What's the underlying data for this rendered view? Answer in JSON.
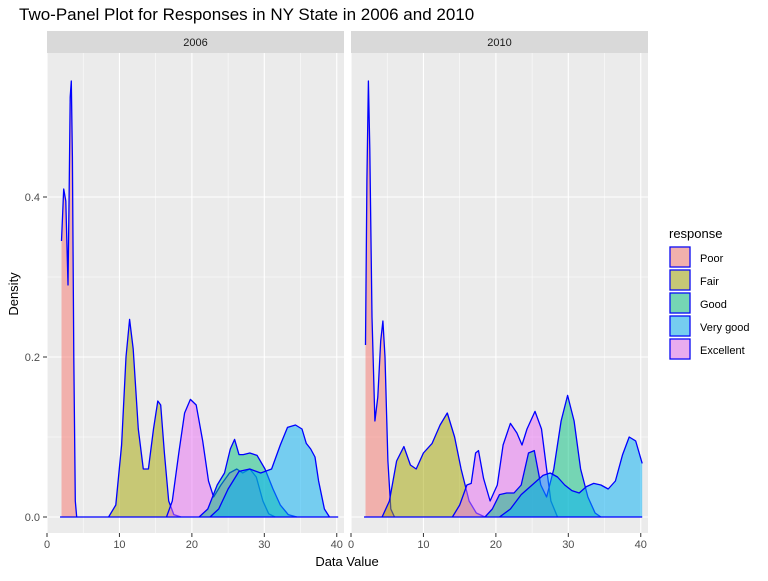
{
  "chart_data": {
    "type": "area",
    "title": "Two-Panel Plot for Responses in NY State in 2006 and 2010",
    "xlabel": "Data Value",
    "ylabel": "Density",
    "xlim": [
      0,
      41
    ],
    "ylim": [
      -0.02,
      0.58
    ],
    "x_ticks": [
      0,
      10,
      20,
      30,
      40
    ],
    "y_ticks": [
      0.0,
      0.2,
      0.4
    ],
    "y_tick_labels": [
      "0.0",
      "0.2",
      "0.4"
    ],
    "grid": true,
    "legend": {
      "title": "response",
      "position": "right"
    },
    "colors": {
      "Poor": "#F8766D",
      "Fair": "#A3A500",
      "Good": "#00BF7D",
      "Very good": "#00B0F6",
      "Excellent": "#E76BF3",
      "outline": "#0000FF",
      "panel_bg": "#EBEBEB",
      "strip_bg": "#D9D9D9",
      "grid": "#FFFFFF"
    },
    "panels": [
      {
        "label": "2006",
        "series": [
          {
            "name": "Poor",
            "points": [
              [
                2.0,
                0.345
              ],
              [
                2.3,
                0.41
              ],
              [
                2.6,
                0.395
              ],
              [
                2.9,
                0.29
              ],
              [
                3.05,
                0.4
              ],
              [
                3.2,
                0.525
              ],
              [
                3.35,
                0.545
              ],
              [
                3.5,
                0.45
              ],
              [
                3.7,
                0.2
              ],
              [
                3.9,
                0.02
              ],
              [
                4.1,
                0.0
              ]
            ]
          },
          {
            "name": "Fair",
            "points": [
              [
                8.5,
                0.0
              ],
              [
                9.5,
                0.015
              ],
              [
                10.3,
                0.09
              ],
              [
                10.9,
                0.2
              ],
              [
                11.4,
                0.247
              ],
              [
                11.9,
                0.21
              ],
              [
                12.6,
                0.11
              ],
              [
                13.3,
                0.06
              ],
              [
                14.0,
                0.06
              ],
              [
                14.7,
                0.11
              ],
              [
                15.3,
                0.145
              ],
              [
                15.7,
                0.14
              ],
              [
                16.2,
                0.08
              ],
              [
                16.8,
                0.02
              ],
              [
                17.5,
                0.003
              ],
              [
                18.5,
                0.0
              ]
            ]
          },
          {
            "name": "Excellent",
            "points": [
              [
                16.5,
                0.0
              ],
              [
                17.3,
                0.02
              ],
              [
                18.2,
                0.08
              ],
              [
                19.0,
                0.13
              ],
              [
                19.8,
                0.147
              ],
              [
                20.6,
                0.14
              ],
              [
                21.5,
                0.095
              ],
              [
                22.3,
                0.045
              ],
              [
                23.0,
                0.025
              ],
              [
                24.0,
                0.04
              ],
              [
                25.2,
                0.055
              ],
              [
                26.2,
                0.06
              ],
              [
                27.0,
                0.055
              ],
              [
                28.0,
                0.06
              ],
              [
                28.9,
                0.05
              ],
              [
                29.8,
                0.02
              ],
              [
                30.6,
                0.004
              ],
              [
                31.5,
                0.0
              ]
            ]
          },
          {
            "name": "Good",
            "points": [
              [
                21.0,
                0.0
              ],
              [
                22.2,
                0.01
              ],
              [
                23.5,
                0.04
              ],
              [
                24.5,
                0.055
              ],
              [
                25.3,
                0.085
              ],
              [
                25.9,
                0.097
              ],
              [
                26.5,
                0.078
              ],
              [
                27.1,
                0.078
              ],
              [
                28.0,
                0.08
              ],
              [
                29.0,
                0.077
              ],
              [
                30.1,
                0.06
              ],
              [
                31.2,
                0.035
              ],
              [
                32.2,
                0.015
              ],
              [
                33.3,
                0.003
              ],
              [
                34.5,
                0.0
              ]
            ]
          },
          {
            "name": "Very good",
            "points": [
              [
                22.5,
                0.0
              ],
              [
                23.7,
                0.01
              ],
              [
                25.0,
                0.035
              ],
              [
                26.5,
                0.057
              ],
              [
                28.0,
                0.06
              ],
              [
                29.5,
                0.055
              ],
              [
                31.0,
                0.06
              ],
              [
                32.2,
                0.09
              ],
              [
                33.2,
                0.112
              ],
              [
                34.3,
                0.115
              ],
              [
                35.2,
                0.11
              ],
              [
                35.8,
                0.092
              ],
              [
                36.4,
                0.085
              ],
              [
                37.0,
                0.075
              ],
              [
                37.5,
                0.045
              ],
              [
                38.3,
                0.01
              ],
              [
                39.0,
                0.0
              ]
            ]
          }
        ]
      },
      {
        "label": "2010",
        "series": [
          {
            "name": "Poor",
            "points": [
              [
                2.0,
                0.215
              ],
              [
                2.2,
                0.42
              ],
              [
                2.4,
                0.545
              ],
              [
                2.6,
                0.46
              ],
              [
                2.9,
                0.25
              ],
              [
                3.3,
                0.12
              ],
              [
                3.7,
                0.15
              ],
              [
                4.1,
                0.22
              ],
              [
                4.4,
                0.245
              ],
              [
                4.7,
                0.2
              ],
              [
                5.1,
                0.07
              ],
              [
                5.5,
                0.01
              ],
              [
                6.0,
                0.0
              ]
            ]
          },
          {
            "name": "Fair",
            "points": [
              [
                4.3,
                0.0
              ],
              [
                5.3,
                0.02
              ],
              [
                6.3,
                0.07
              ],
              [
                7.3,
                0.088
              ],
              [
                8.2,
                0.065
              ],
              [
                9.0,
                0.06
              ],
              [
                10.0,
                0.08
              ],
              [
                11.2,
                0.092
              ],
              [
                12.3,
                0.115
              ],
              [
                13.3,
                0.13
              ],
              [
                14.3,
                0.1
              ],
              [
                15.2,
                0.06
              ],
              [
                16.3,
                0.02
              ],
              [
                17.3,
                0.005
              ],
              [
                18.5,
                0.0
              ]
            ]
          },
          {
            "name": "Excellent",
            "points": [
              [
                14.0,
                0.0
              ],
              [
                15.0,
                0.015
              ],
              [
                16.0,
                0.04
              ],
              [
                16.6,
                0.042
              ],
              [
                17.2,
                0.08
              ],
              [
                17.6,
                0.083
              ],
              [
                18.3,
                0.048
              ],
              [
                19.2,
                0.02
              ],
              [
                20.2,
                0.04
              ],
              [
                21.0,
                0.09
              ],
              [
                22.0,
                0.117
              ],
              [
                22.9,
                0.105
              ],
              [
                23.6,
                0.09
              ],
              [
                24.3,
                0.11
              ],
              [
                25.4,
                0.132
              ],
              [
                26.3,
                0.11
              ],
              [
                27.0,
                0.06
              ],
              [
                27.6,
                0.02
              ],
              [
                28.5,
                0.0
              ]
            ]
          },
          {
            "name": "Good",
            "points": [
              [
                18.5,
                0.0
              ],
              [
                19.5,
                0.01
              ],
              [
                20.5,
                0.028
              ],
              [
                21.5,
                0.03
              ],
              [
                22.5,
                0.03
              ],
              [
                23.5,
                0.04
              ],
              [
                24.5,
                0.08
              ],
              [
                25.3,
                0.083
              ],
              [
                26.2,
                0.04
              ],
              [
                27.0,
                0.025
              ],
              [
                28.0,
                0.06
              ],
              [
                29.0,
                0.12
              ],
              [
                29.9,
                0.152
              ],
              [
                30.8,
                0.12
              ],
              [
                31.7,
                0.06
              ],
              [
                32.7,
                0.025
              ],
              [
                33.7,
                0.005
              ],
              [
                34.5,
                0.0
              ]
            ]
          },
          {
            "name": "Very good",
            "points": [
              [
                20.5,
                0.0
              ],
              [
                22.0,
                0.01
              ],
              [
                23.5,
                0.028
              ],
              [
                25.0,
                0.04
              ],
              [
                26.5,
                0.052
              ],
              [
                27.5,
                0.055
              ],
              [
                28.5,
                0.05
              ],
              [
                29.5,
                0.04
              ],
              [
                30.5,
                0.033
              ],
              [
                31.5,
                0.03
              ],
              [
                32.5,
                0.038
              ],
              [
                33.5,
                0.042
              ],
              [
                34.5,
                0.04
              ],
              [
                35.5,
                0.035
              ],
              [
                36.5,
                0.045
              ],
              [
                37.5,
                0.078
              ],
              [
                38.4,
                0.1
              ],
              [
                39.3,
                0.095
              ],
              [
                40.2,
                0.067
              ]
            ]
          }
        ]
      }
    ]
  }
}
